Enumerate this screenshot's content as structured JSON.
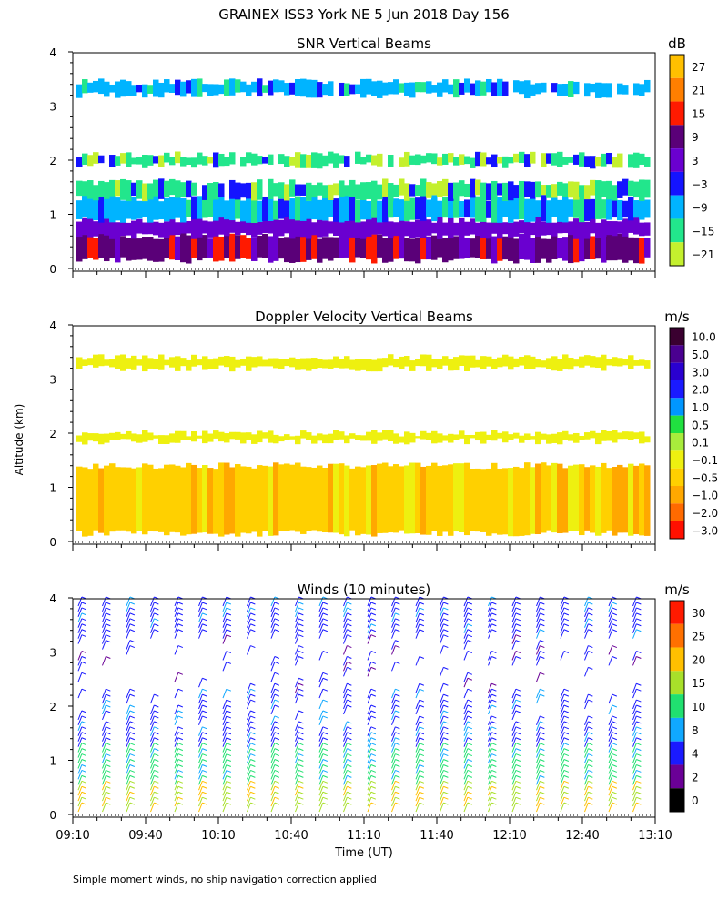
{
  "title": "GRAINEX ISS3 York NE   5 Jun 2018 Day 156",
  "footnote": "Simple moment winds, no ship navigation correction applied",
  "shared_ylabel": "Altitude (km)",
  "shared_xlabel": "Time (UT)",
  "x_ticks": [
    "09:10",
    "09:40",
    "10:10",
    "10:40",
    "11:10",
    "11:40",
    "12:10",
    "12:40",
    "13:10"
  ],
  "y_ticks": [
    "0",
    "1",
    "2",
    "3",
    "4"
  ],
  "chart_data": [
    {
      "type": "heatmap",
      "title": "SNR Vertical Beams",
      "unit": "dB",
      "xlabel": "",
      "ylabel": "Altitude (km)",
      "xlim_hours_ut": [
        9.1667,
        13.1667
      ],
      "ylim": [
        0,
        4
      ],
      "colorbar_ticks": [
        "27",
        "21",
        "15",
        "9",
        "3",
        "−3",
        "−9",
        "−15",
        "−21"
      ],
      "colorbar_colors": [
        "#ffc000",
        "#ff7f00",
        "#ff1a00",
        "#5a0078",
        "#6a00d0",
        "#1414ff",
        "#00b4ff",
        "#22e68c",
        "#c4f02e"
      ],
      "layers": [
        {
          "altitude_km": [
            0.15,
            0.6
          ],
          "snr_db": 9
        },
        {
          "altitude_km": [
            0.6,
            0.9
          ],
          "snr_db": 3
        },
        {
          "altitude_km": [
            0.9,
            1.3
          ],
          "snr_db": -9
        },
        {
          "altitude_km": [
            1.3,
            1.6
          ],
          "snr_db": -15
        },
        {
          "altitude_km": [
            1.9,
            2.1
          ],
          "snr_db": -15
        },
        {
          "altitude_km": [
            3.2,
            3.45
          ],
          "snr_db": -9
        }
      ]
    },
    {
      "type": "heatmap",
      "title": "Doppler Velocity Vertical Beams",
      "unit": "m/s",
      "xlabel": "",
      "ylabel": "Altitude (km)",
      "xlim_hours_ut": [
        9.1667,
        13.1667
      ],
      "ylim": [
        0,
        4
      ],
      "colorbar_ticks": [
        "10.0",
        "5.0",
        "3.0",
        "2.0",
        "1.0",
        "0.5",
        "0.1",
        "−0.1",
        "−0.5",
        "−1.0",
        "−2.0",
        "−3.0"
      ],
      "colorbar_colors": [
        "#3a0030",
        "#4a0090",
        "#2a00d0",
        "#1a1aff",
        "#0096ff",
        "#20e040",
        "#a8ec3c",
        "#eef010",
        "#ffd000",
        "#ffa800",
        "#ff6a00",
        "#ff1000"
      ],
      "layers": [
        {
          "altitude_km": [
            0.15,
            1.4
          ],
          "velocity_ms": -0.5
        },
        {
          "altitude_km": [
            1.85,
            2.0
          ],
          "velocity_ms": -0.1
        },
        {
          "altitude_km": [
            3.2,
            3.4
          ],
          "velocity_ms": -0.1
        }
      ]
    },
    {
      "type": "wind_barbs",
      "title": "Winds (10 minutes)",
      "unit": "m/s",
      "xlabel": "Time (UT)",
      "ylabel": "Altitude (km)",
      "xlim_hours_ut": [
        9.1667,
        13.1667
      ],
      "ylim": [
        0,
        4
      ],
      "interval_minutes": 10,
      "colorbar_ticks": [
        "30",
        "25",
        "20",
        "15",
        "10",
        "8",
        "4",
        "2",
        "0"
      ],
      "colorbar_colors": [
        "#ff1a00",
        "#ff7000",
        "#ffc000",
        "#a8e02a",
        "#20e070",
        "#10a8ff",
        "#1a1aff",
        "#6a0096",
        "#000000"
      ],
      "speed_by_altitude": [
        {
          "altitude_km": [
            0.0,
            0.5
          ],
          "speed_ms": 17
        },
        {
          "altitude_km": [
            0.5,
            1.2
          ],
          "speed_ms": 10
        },
        {
          "altitude_km": [
            1.2,
            2.2
          ],
          "speed_ms": 5
        },
        {
          "altitude_km": [
            2.2,
            3.2
          ],
          "speed_ms": 4
        },
        {
          "altitude_km": [
            3.2,
            4.0
          ],
          "speed_ms": 5
        }
      ]
    }
  ]
}
